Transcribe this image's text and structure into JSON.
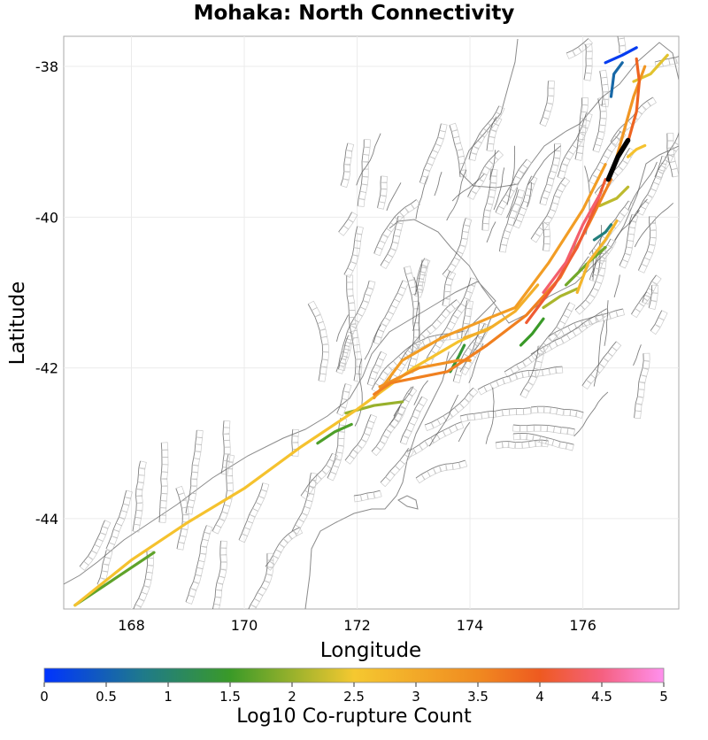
{
  "title": "Mohaka: North Connectivity",
  "axes": {
    "xlabel": "Longitude",
    "ylabel": "Latitude",
    "x_ticks": [
      "168",
      "170",
      "172",
      "174",
      "176"
    ],
    "x_tick_values": [
      168,
      170,
      172,
      174,
      176
    ],
    "y_ticks": [
      "-38",
      "-40",
      "-42",
      "-44"
    ],
    "y_tick_values": [
      -38,
      -40,
      -42,
      -44
    ],
    "xlim": [
      166.8,
      177.7
    ],
    "ylim": [
      -45.2,
      -37.6
    ]
  },
  "colorbar": {
    "label": "Log10 Co-rupture Count",
    "ticks": [
      "0",
      "0.5",
      "1",
      "1.5",
      "2",
      "2.5",
      "3",
      "3.5",
      "4",
      "4.5",
      "5"
    ],
    "range": [
      0,
      5
    ],
    "stops": [
      {
        "v": 0.0,
        "color": "#0033ff"
      },
      {
        "v": 0.8,
        "color": "#1f7a8a"
      },
      {
        "v": 1.5,
        "color": "#3a9a28"
      },
      {
        "v": 2.5,
        "color": "#f5c830"
      },
      {
        "v": 3.5,
        "color": "#f08a20"
      },
      {
        "v": 4.0,
        "color": "#ee5a20"
      },
      {
        "v": 4.5,
        "color": "#f56080"
      },
      {
        "v": 5.0,
        "color": "#ff90ee"
      }
    ]
  },
  "chart_data": {
    "type": "map",
    "title": "Mohaka: North Connectivity",
    "xlabel": "Longitude",
    "ylabel": "Latitude",
    "xlim": [
      166.8,
      177.7
    ],
    "ylim": [
      -45.2,
      -37.6
    ],
    "colorbar_label": "Log10 Co-rupture Count",
    "highlighted_fault": {
      "name": "Mohaka: North",
      "lonlat": [
        [
          176.45,
          -39.5
        ],
        [
          176.62,
          -39.2
        ],
        [
          176.8,
          -38.98
        ]
      ]
    },
    "connected_ruptures": [
      {
        "v": 2.6,
        "lonlat": [
          [
            167.0,
            -45.15
          ],
          [
            168.0,
            -44.55
          ],
          [
            169.0,
            -44.05
          ],
          [
            170.0,
            -43.6
          ],
          [
            171.0,
            -43.05
          ],
          [
            172.0,
            -42.55
          ],
          [
            173.0,
            -42.0
          ],
          [
            173.8,
            -41.65
          ],
          [
            174.4,
            -41.45
          ]
        ]
      },
      {
        "v": 1.7,
        "lonlat": [
          [
            167.0,
            -45.15
          ],
          [
            167.8,
            -44.75
          ],
          [
            168.4,
            -44.45
          ]
        ]
      },
      {
        "v": 3.2,
        "lonlat": [
          [
            172.3,
            -42.4
          ],
          [
            172.8,
            -41.9
          ],
          [
            173.5,
            -41.6
          ],
          [
            174.3,
            -41.35
          ],
          [
            174.8,
            -41.2
          ],
          [
            175.4,
            -40.6
          ],
          [
            176.0,
            -39.9
          ],
          [
            176.4,
            -39.3
          ]
        ]
      },
      {
        "v": 3.6,
        "lonlat": [
          [
            172.3,
            -42.35
          ],
          [
            172.6,
            -42.2
          ],
          [
            173.6,
            -42.05
          ],
          [
            174.3,
            -41.7
          ],
          [
            175.0,
            -41.3
          ],
          [
            175.6,
            -40.8
          ],
          [
            176.1,
            -40.1
          ],
          [
            176.5,
            -39.5
          ]
        ]
      },
      {
        "v": 4.1,
        "lonlat": [
          [
            175.0,
            -41.4
          ],
          [
            175.5,
            -40.9
          ],
          [
            175.9,
            -40.4
          ],
          [
            176.2,
            -39.9
          ],
          [
            176.4,
            -39.5
          ]
        ]
      },
      {
        "v": 4.4,
        "lonlat": [
          [
            175.3,
            -41.0
          ],
          [
            175.7,
            -40.6
          ],
          [
            176.0,
            -40.1
          ],
          [
            176.3,
            -39.7
          ]
        ]
      },
      {
        "v": 3.3,
        "lonlat": [
          [
            176.6,
            -39.2
          ],
          [
            176.75,
            -38.8
          ],
          [
            176.9,
            -38.4
          ],
          [
            177.1,
            -38.0
          ]
        ]
      },
      {
        "v": 3.9,
        "lonlat": [
          [
            176.8,
            -39.0
          ],
          [
            176.95,
            -38.6
          ],
          [
            177.0,
            -38.2
          ],
          [
            176.95,
            -37.9
          ]
        ]
      },
      {
        "v": 2.4,
        "lonlat": [
          [
            176.9,
            -38.2
          ],
          [
            177.2,
            -38.1
          ],
          [
            177.5,
            -37.85
          ]
        ]
      },
      {
        "v": 0.6,
        "lonlat": [
          [
            176.5,
            -38.4
          ],
          [
            176.55,
            -38.1
          ],
          [
            176.7,
            -37.95
          ]
        ]
      },
      {
        "v": 0.1,
        "lonlat": [
          [
            176.4,
            -37.95
          ],
          [
            176.7,
            -37.85
          ],
          [
            176.95,
            -37.75
          ]
        ]
      },
      {
        "v": 1.8,
        "lonlat": [
          [
            175.7,
            -40.9
          ],
          [
            176.1,
            -40.6
          ],
          [
            176.4,
            -40.4
          ]
        ]
      },
      {
        "v": 2.1,
        "lonlat": [
          [
            175.3,
            -41.2
          ],
          [
            175.6,
            -41.05
          ],
          [
            175.9,
            -40.95
          ]
        ]
      },
      {
        "v": 2.8,
        "lonlat": [
          [
            175.9,
            -41.0
          ],
          [
            176.1,
            -40.6
          ],
          [
            176.4,
            -40.3
          ],
          [
            176.6,
            -40.05
          ]
        ]
      },
      {
        "v": 1.5,
        "lonlat": [
          [
            174.9,
            -41.7
          ],
          [
            175.1,
            -41.55
          ],
          [
            175.3,
            -41.35
          ]
        ]
      },
      {
        "v": 1.6,
        "lonlat": [
          [
            171.3,
            -43.0
          ],
          [
            171.6,
            -42.85
          ],
          [
            171.9,
            -42.75
          ]
        ]
      },
      {
        "v": 2.0,
        "lonlat": [
          [
            171.8,
            -42.6
          ],
          [
            172.3,
            -42.5
          ],
          [
            172.8,
            -42.45
          ]
        ]
      },
      {
        "v": 1.4,
        "lonlat": [
          [
            173.65,
            -42.05
          ],
          [
            173.8,
            -41.85
          ],
          [
            173.9,
            -41.7
          ]
        ]
      },
      {
        "v": 2.9,
        "lonlat": [
          [
            173.9,
            -41.6
          ],
          [
            174.3,
            -41.5
          ],
          [
            174.8,
            -41.25
          ],
          [
            175.2,
            -40.9
          ]
        ]
      },
      {
        "v": 3.4,
        "lonlat": [
          [
            172.4,
            -42.25
          ],
          [
            173.1,
            -42.0
          ],
          [
            173.8,
            -41.9
          ],
          [
            174.0,
            -41.9
          ]
        ]
      },
      {
        "v": 0.9,
        "lonlat": [
          [
            176.2,
            -40.3
          ],
          [
            176.4,
            -40.2
          ],
          [
            176.5,
            -40.1
          ]
        ]
      },
      {
        "v": 2.2,
        "lonlat": [
          [
            176.3,
            -39.85
          ],
          [
            176.6,
            -39.75
          ],
          [
            176.8,
            -39.6
          ]
        ]
      },
      {
        "v": 2.6,
        "lonlat": [
          [
            176.8,
            -39.2
          ],
          [
            176.95,
            -39.1
          ],
          [
            177.1,
            -39.05
          ]
        ]
      }
    ]
  }
}
